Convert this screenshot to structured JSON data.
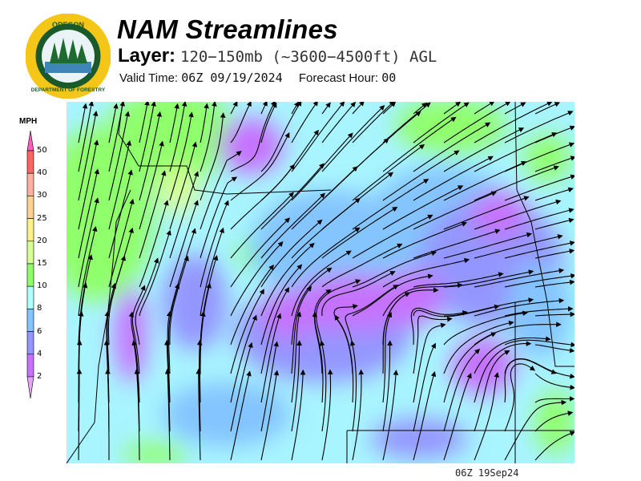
{
  "header": {
    "title": "NAM Streamlines",
    "layer_label": "Layer:",
    "layer_value": "120−150mb (~3600−4500ft) AGL",
    "valid_label": "Valid Time:",
    "valid_value": "06Z 09/19/2024",
    "forecast_label": "Forecast Hour:",
    "forecast_value": "00"
  },
  "logo": {
    "text_top": "OREGON",
    "text_bottom": "DEPARTMENT OF FORESTRY"
  },
  "legend": {
    "unit": "MPH",
    "ticks": [
      "50",
      "40",
      "30",
      "25",
      "20",
      "15",
      "10",
      "8",
      "6",
      "4",
      "2"
    ],
    "colors": {
      "above_50": "#ff5cc0",
      "40_50": "#ff6464",
      "30_40": "#ffb0a0",
      "25_30": "#ffd294",
      "20_25": "#fff08c",
      "15_20": "#d8ff94",
      "10_15": "#90ff6c",
      "8_10": "#b0ffff",
      "6_8": "#84c4ff",
      "4_6": "#9496ff",
      "2_4": "#c672ff",
      "below_2": "#eaa2f8"
    }
  },
  "footer": {
    "timestamp": "06Z 19Sep24"
  }
}
